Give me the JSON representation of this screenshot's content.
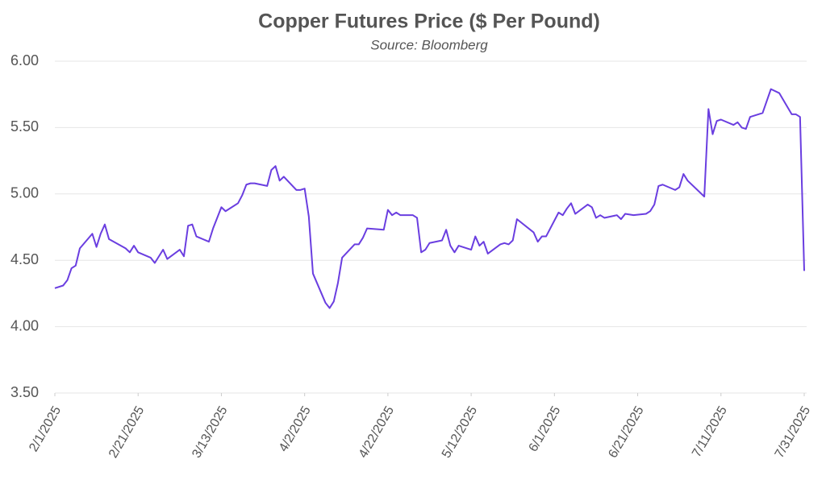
{
  "chart_data": {
    "type": "line",
    "title": "Copper Futures Price ($ Per Pound)",
    "subtitle": "Source: Bloomberg",
    "color": "#6a3ee0",
    "grid": true,
    "x": [
      "2/1/2025",
      "2/3/2025",
      "2/4/2025",
      "2/5/2025",
      "2/6/2025",
      "2/7/2025",
      "2/10/2025",
      "2/11/2025",
      "2/12/2025",
      "2/13/2025",
      "2/14/2025",
      "2/18/2025",
      "2/19/2025",
      "2/20/2025",
      "2/21/2025",
      "2/24/2025",
      "2/25/2025",
      "2/27/2025",
      "2/28/2025",
      "3/3/2025",
      "3/4/2025",
      "3/5/2025",
      "3/6/2025",
      "3/7/2025",
      "3/10/2025",
      "3/11/2025",
      "3/12/2025",
      "3/13/2025",
      "3/14/2025",
      "3/17/2025",
      "3/18/2025",
      "3/19/2025",
      "3/20/2025",
      "3/21/2025",
      "3/24/2025",
      "3/25/2025",
      "3/26/2025",
      "3/27/2025",
      "3/28/2025",
      "3/31/2025",
      "4/1/2025",
      "4/2/2025",
      "4/3/2025",
      "4/4/2025",
      "4/7/2025",
      "4/8/2025",
      "4/9/2025",
      "4/10/2025",
      "4/11/2025",
      "4/14/2025",
      "4/15/2025",
      "4/16/2025",
      "4/17/2025",
      "4/21/2025",
      "4/22/2025",
      "4/23/2025",
      "4/24/2025",
      "4/25/2025",
      "4/28/2025",
      "4/29/2025",
      "4/30/2025",
      "5/1/2025",
      "5/2/2025",
      "5/5/2025",
      "5/6/2025",
      "5/7/2025",
      "5/8/2025",
      "5/9/2025",
      "5/12/2025",
      "5/13/2025",
      "5/14/2025",
      "5/15/2025",
      "5/16/2025",
      "5/19/2025",
      "5/20/2025",
      "5/21/2025",
      "5/22/2025",
      "5/23/2025",
      "5/27/2025",
      "5/28/2025",
      "5/29/2025",
      "5/30/2025",
      "6/2/2025",
      "6/3/2025",
      "6/4/2025",
      "6/5/2025",
      "6/6/2025",
      "6/9/2025",
      "6/10/2025",
      "6/11/2025",
      "6/12/2025",
      "6/13/2025",
      "6/16/2025",
      "6/17/2025",
      "6/18/2025",
      "6/20/2025",
      "6/23/2025",
      "6/24/2025",
      "6/25/2025",
      "6/26/2025",
      "6/27/2025",
      "6/30/2025",
      "7/1/2025",
      "7/2/2025",
      "7/3/2025",
      "7/7/2025",
      "7/8/2025",
      "7/9/2025",
      "7/10/2025",
      "7/11/2025",
      "7/14/2025",
      "7/15/2025",
      "7/16/2025",
      "7/17/2025",
      "7/18/2025",
      "7/21/2025",
      "7/23/2025",
      "7/25/2025",
      "7/28/2025",
      "7/29/2025",
      "7/30/2025",
      "7/31/2025"
    ],
    "values": [
      4.29,
      4.31,
      4.35,
      4.44,
      4.46,
      4.59,
      4.7,
      4.6,
      4.7,
      4.77,
      4.66,
      4.59,
      4.56,
      4.61,
      4.56,
      4.52,
      4.48,
      4.58,
      4.51,
      4.58,
      4.53,
      4.76,
      4.77,
      4.68,
      4.64,
      4.74,
      4.82,
      4.9,
      4.87,
      4.93,
      4.99,
      5.07,
      5.08,
      5.08,
      5.06,
      5.18,
      5.21,
      5.1,
      5.13,
      5.03,
      5.03,
      5.04,
      4.83,
      4.4,
      4.18,
      4.14,
      4.19,
      4.33,
      4.52,
      4.62,
      4.62,
      4.67,
      4.74,
      4.73,
      4.88,
      4.84,
      4.86,
      4.84,
      4.84,
      4.82,
      4.56,
      4.58,
      4.63,
      4.65,
      4.73,
      4.61,
      4.56,
      4.61,
      4.58,
      4.68,
      4.61,
      4.64,
      4.55,
      4.62,
      4.63,
      4.62,
      4.65,
      4.81,
      4.71,
      4.64,
      4.68,
      4.68,
      4.86,
      4.84,
      4.89,
      4.93,
      4.85,
      4.92,
      4.9,
      4.82,
      4.84,
      4.82,
      4.84,
      4.81,
      4.85,
      4.84,
      4.85,
      4.87,
      4.92,
      5.06,
      5.07,
      5.03,
      5.05,
      5.15,
      5.1,
      4.98,
      5.64,
      5.45,
      5.55,
      5.56,
      5.52,
      5.54,
      5.5,
      5.49,
      5.58,
      5.61,
      5.79,
      5.76,
      5.6,
      5.6,
      5.58,
      4.42
    ],
    "xlim": [
      "2/1/2025",
      "7/31/2025"
    ],
    "xticks": [
      "2/1/2025",
      "2/21/2025",
      "3/13/2025",
      "4/2/2025",
      "4/22/2025",
      "5/12/2025",
      "6/1/2025",
      "6/21/2025",
      "7/11/2025",
      "7/31/2025"
    ],
    "ylim": [
      3.5,
      6
    ],
    "yticks": [
      {
        "value": 3.5,
        "label": "3.50"
      },
      {
        "value": 4,
        "label": "4.00"
      },
      {
        "value": 4.5,
        "label": "4.50"
      },
      {
        "value": 5,
        "label": "5.00"
      },
      {
        "value": 5.5,
        "label": "5.50"
      },
      {
        "value": 6,
        "label": "6.00"
      }
    ]
  }
}
